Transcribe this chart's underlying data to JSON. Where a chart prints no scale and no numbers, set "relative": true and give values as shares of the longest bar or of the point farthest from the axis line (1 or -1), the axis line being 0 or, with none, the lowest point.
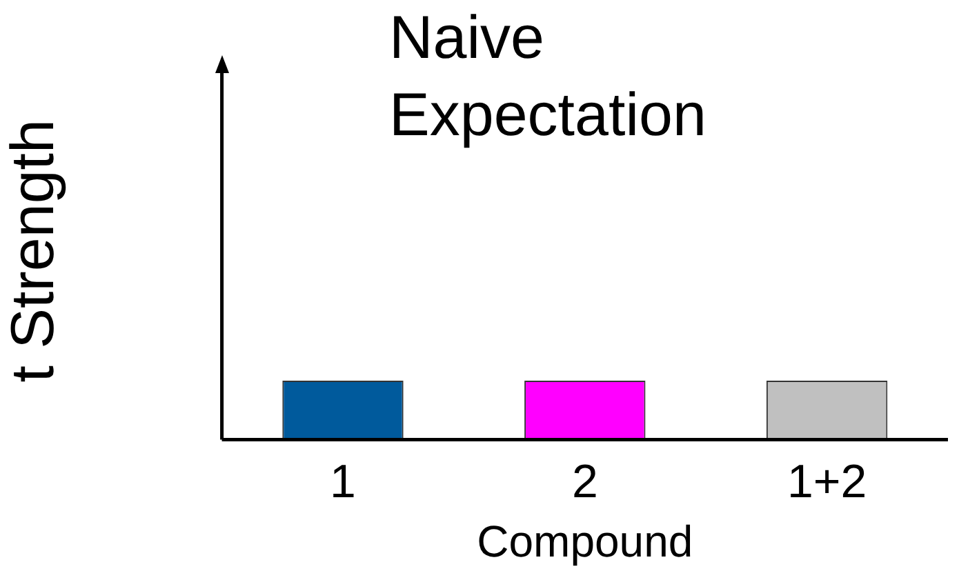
{
  "chart_data": {
    "type": "bar",
    "title": "Naive Expectation",
    "xlabel": "Compound",
    "ylabel": "t Strength",
    "categories": [
      "1",
      "2",
      "1+2"
    ],
    "values": [
      1,
      1,
      1
    ],
    "colors": [
      "#005a9c",
      "#ff00ff",
      "#c0c0c0"
    ],
    "relative": true
  }
}
